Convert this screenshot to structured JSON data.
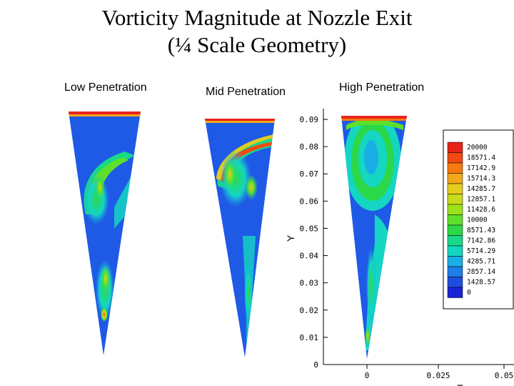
{
  "title": {
    "line1": "Vorticity Magnitude at Nozzle Exit",
    "line2": "(¼ Scale Geometry)"
  },
  "panels": [
    {
      "label": "Low Penetration"
    },
    {
      "label": "Mid Penetration"
    },
    {
      "label": "High Penetration"
    }
  ],
  "y_axis": {
    "label": "Y",
    "ticks": [
      "0.09",
      "0.08",
      "0.07",
      "0.06",
      "0.05",
      "0.04",
      "0.03",
      "0.02",
      "0.01",
      "0"
    ]
  },
  "x_axis": {
    "label": "Z",
    "ticks": [
      "0",
      "0.025",
      "0.05"
    ]
  },
  "legend": {
    "levels": [
      "20000",
      "18571.4",
      "17142.9",
      "15714.3",
      "14285.7",
      "12857.1",
      "11428.6",
      "10000",
      "8571.43",
      "7142.86",
      "5714.29",
      "4285.71",
      "2857.14",
      "1428.57",
      "0"
    ],
    "colors": [
      "#e8231a",
      "#f24a12",
      "#f77a0e",
      "#f2a81a",
      "#e6cc1e",
      "#c8dc1c",
      "#9ee21c",
      "#5ee02a",
      "#2bd84a",
      "#18d88a",
      "#14d6c2",
      "#1aaee6",
      "#1e7ee8",
      "#1d4ee0",
      "#1a22d6"
    ]
  }
}
